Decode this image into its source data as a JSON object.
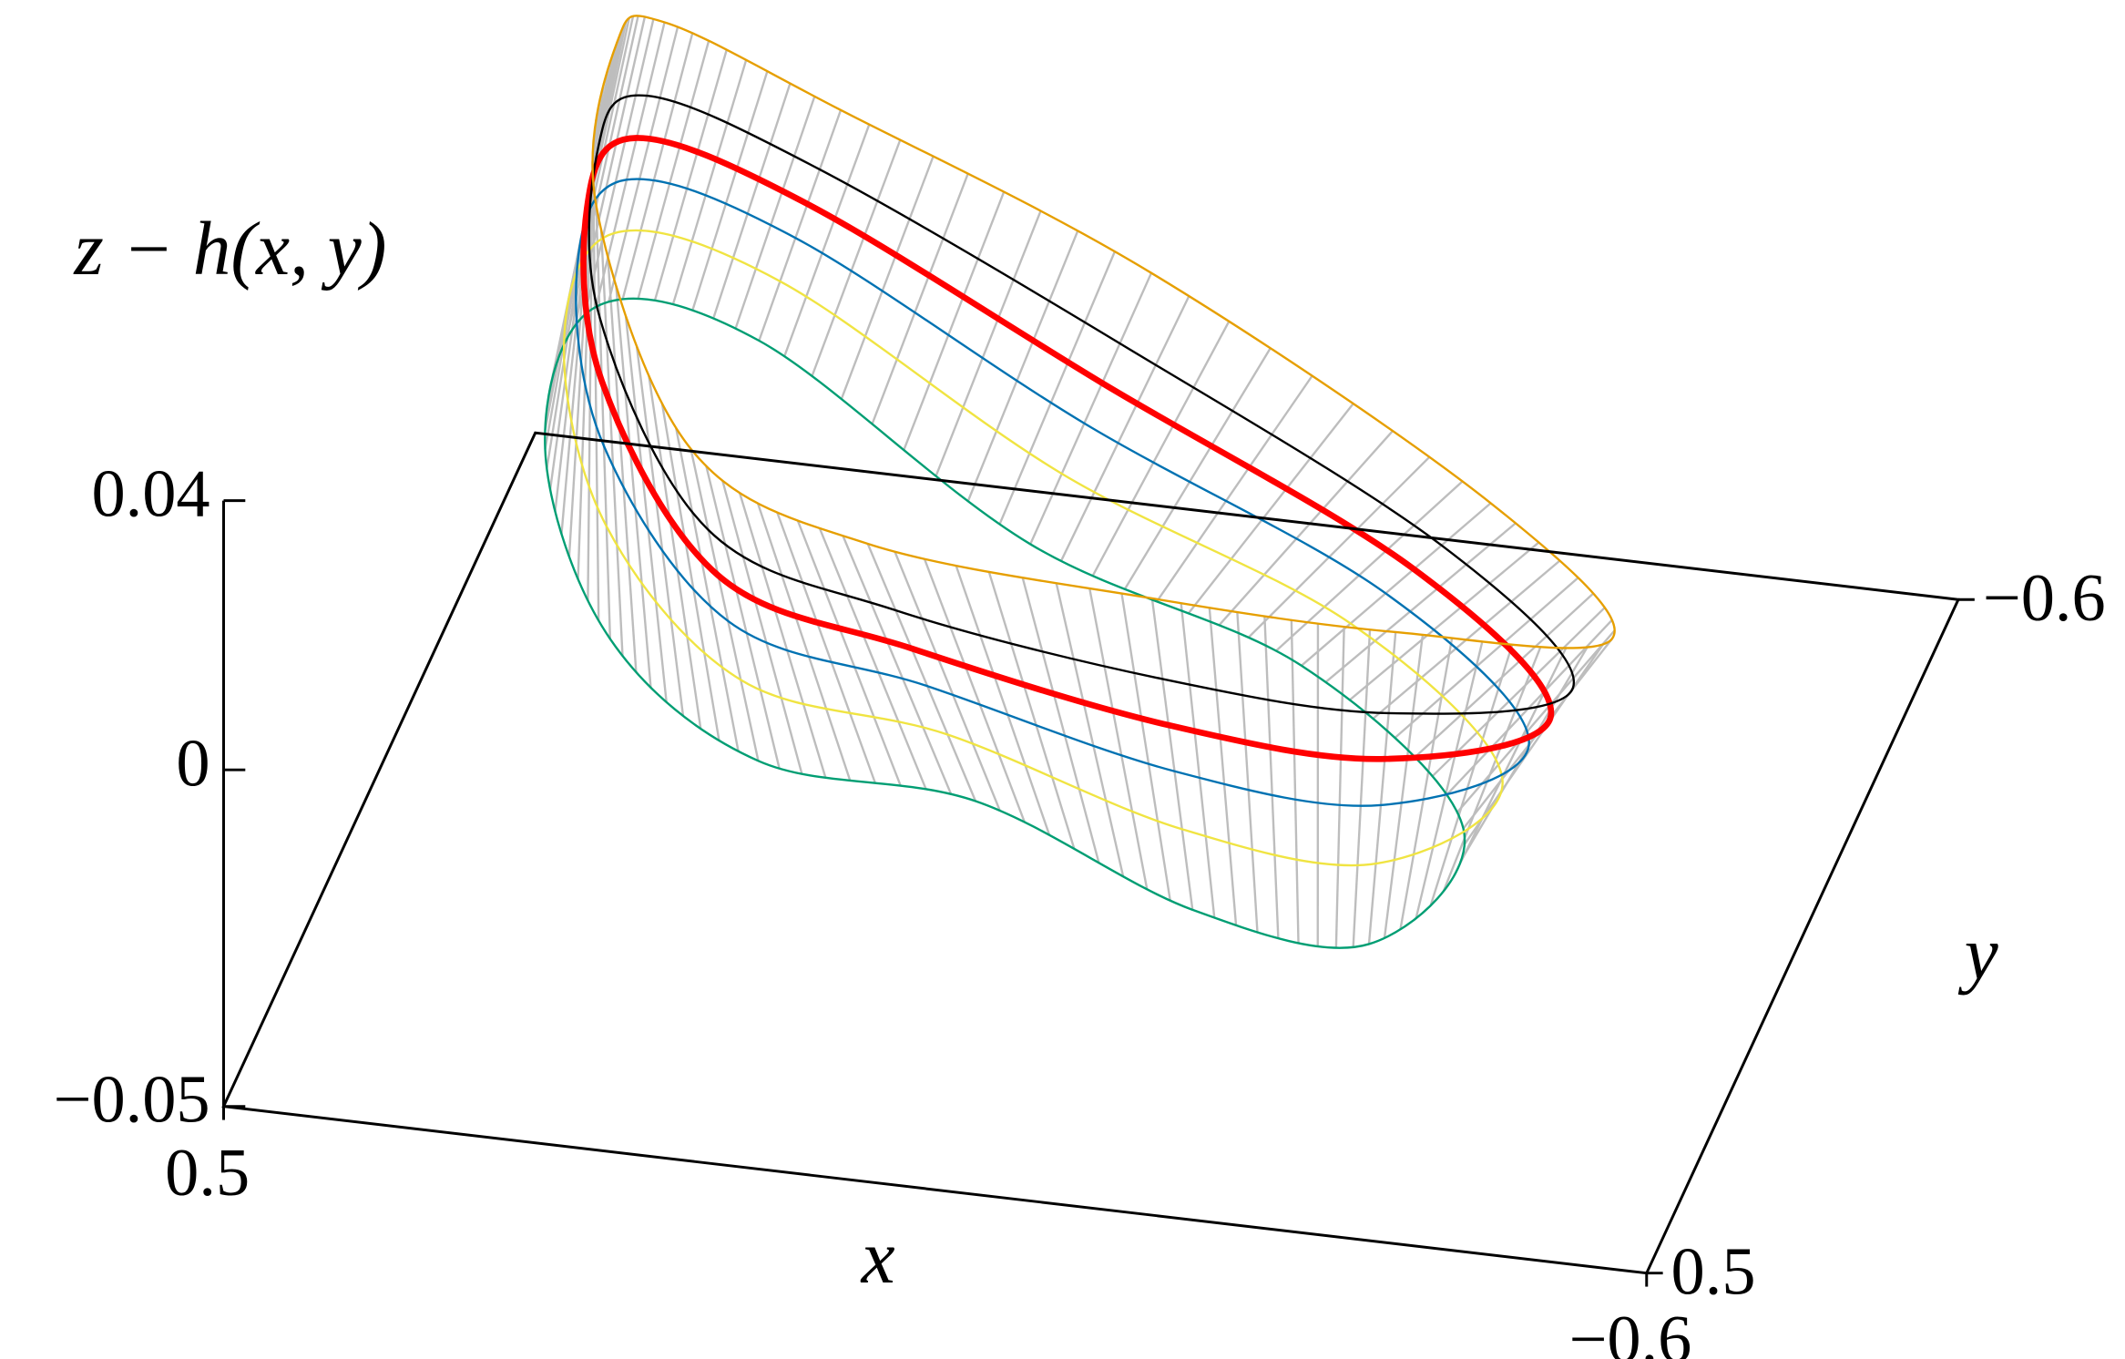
{
  "chart_data": {
    "type": "surface3d",
    "zlabel": "z − h(x, y)",
    "xlabel": "x",
    "ylabel": "y",
    "xlim": [
      0.5,
      -0.6
    ],
    "ylim": [
      0.5,
      -0.6
    ],
    "zlim": [
      -0.05,
      0.04
    ],
    "xticks": [
      0.5,
      {
        "value": -0.6,
        "label": "−0.6"
      }
    ],
    "yticks": [
      {
        "value": -0.6,
        "label": "−0.6"
      },
      0.5
    ],
    "zticks": [
      0.04,
      0,
      {
        "value": -0.05,
        "label": "−0.05"
      }
    ],
    "mesh_color": "#bdbdbd",
    "series": [
      {
        "color": "#009e73",
        "linewidth": 1.6,
        "z": -0.014,
        "x": [
          0.405,
          0.293,
          0.143,
          -0.03,
          -0.226,
          -0.367,
          -0.397,
          -0.223,
          0.017,
          0.285,
          0.416
        ],
        "y": [
          -0.201,
          0.081,
          0.243,
          0.266,
          0.395,
          0.416,
          0.22,
          -0.003,
          -0.142,
          -0.408,
          -0.431
        ]
      },
      {
        "color": "#f0e442",
        "linewidth": 1.6,
        "z": 0.0,
        "x": [
          0.395,
          0.302,
          0.151,
          -0.019,
          -0.223,
          -0.377,
          -0.441,
          -0.277,
          -0.014,
          0.258,
          0.396
        ],
        "y": [
          -0.222,
          0.053,
          0.267,
          0.314,
          0.418,
          0.436,
          0.283,
          0.069,
          -0.111,
          -0.358,
          -0.402
        ]
      },
      {
        "color": "#0072b2",
        "linewidth": 1.6,
        "z": 0.01,
        "x": [
          0.388,
          0.308,
          0.157,
          -0.011,
          -0.221,
          -0.383,
          -0.471,
          -0.314,
          -0.036,
          0.239,
          0.382
        ],
        "y": [
          -0.236,
          0.034,
          0.283,
          0.347,
          0.434,
          0.449,
          0.326,
          0.119,
          -0.089,
          -0.324,
          -0.383
        ]
      },
      {
        "color": "#ff0000",
        "linewidth": 4.5,
        "z": 0.018,
        "x": [
          0.383,
          0.313,
          0.162,
          -0.005,
          -0.219,
          -0.389,
          -0.496,
          -0.345,
          -0.054,
          0.223,
          0.371
        ],
        "y": [
          -0.248,
          0.018,
          0.297,
          0.375,
          0.447,
          0.46,
          0.363,
          0.16,
          -0.071,
          -0.295,
          -0.366
        ]
      },
      {
        "color": "#000000",
        "linewidth": 1.6,
        "z": 0.026,
        "x": [
          0.377,
          0.318,
          0.167,
          0.002,
          -0.217,
          -0.394,
          -0.521,
          -0.376,
          -0.072,
          0.207,
          0.359
        ],
        "y": [
          -0.26,
          0.003,
          0.311,
          0.402,
          0.46,
          0.472,
          0.399,
          0.202,
          -0.052,
          -0.267,
          -0.35
        ]
      },
      {
        "color": "#e69f00",
        "linewidth": 1.6,
        "z": 0.04,
        "x": [
          0.367,
          0.327,
          0.175,
          0.013,
          -0.214,
          -0.404,
          -0.565,
          -0.43,
          -0.103,
          0.18,
          0.339
        ],
        "y": [
          -0.281,
          -0.025,
          0.335,
          0.45,
          0.483,
          0.491,
          0.462,
          0.274,
          -0.021,
          -0.217,
          -0.321
        ]
      }
    ]
  }
}
